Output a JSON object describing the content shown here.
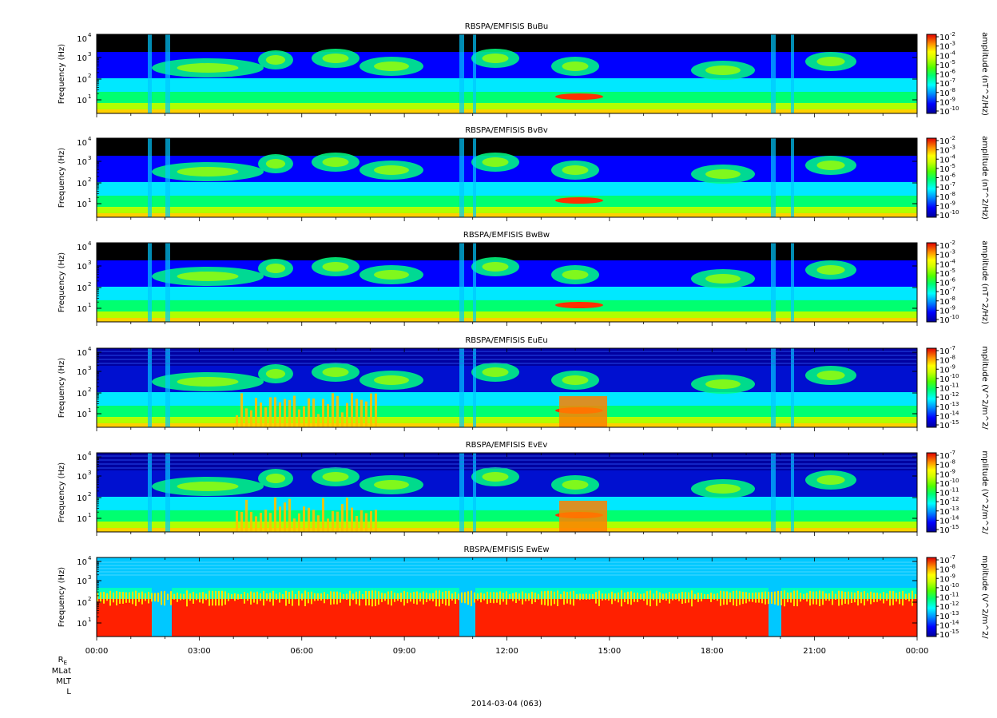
{
  "chart_data": [
    {
      "type": "heatmap",
      "title": "RBSPA/EMFISIS  BuBu",
      "ylabel": "Frequency (Hz)",
      "y_ticks": [
        "10",
        "10",
        "10",
        "10"
      ],
      "y_tick_exps": [
        "1",
        "2",
        "3",
        "4"
      ],
      "y_log": true,
      "colorbar": {
        "label": "amplitude (nT^2/Hz)",
        "ticks": [
          "10",
          "10",
          "10",
          "10",
          "10",
          "10",
          "10",
          "10",
          "10"
        ],
        "exps": [
          "-2",
          "-3",
          "-4",
          "-5",
          "-6",
          "-7",
          "-8",
          "-9",
          "-10"
        ]
      },
      "variant": "B"
    },
    {
      "type": "heatmap",
      "title": "RBSPA/EMFISIS  BvBv",
      "ylabel": "Frequency (Hz)",
      "y_ticks": [
        "10",
        "10",
        "10",
        "10"
      ],
      "y_tick_exps": [
        "1",
        "2",
        "3",
        "4"
      ],
      "y_log": true,
      "colorbar": {
        "label": "amplitude (nT^2/Hz)",
        "ticks": [
          "10",
          "10",
          "10",
          "10",
          "10",
          "10",
          "10",
          "10",
          "10"
        ],
        "exps": [
          "-2",
          "-3",
          "-4",
          "-5",
          "-6",
          "-7",
          "-8",
          "-9",
          "-10"
        ]
      },
      "variant": "B"
    },
    {
      "type": "heatmap",
      "title": "RBSPA/EMFISIS  BwBw",
      "ylabel": "Frequency (Hz)",
      "y_ticks": [
        "10",
        "10",
        "10",
        "10"
      ],
      "y_tick_exps": [
        "1",
        "2",
        "3",
        "4"
      ],
      "y_log": true,
      "colorbar": {
        "label": "amplitude (nT^2/Hz)",
        "ticks": [
          "10",
          "10",
          "10",
          "10",
          "10",
          "10",
          "10",
          "10",
          "10"
        ],
        "exps": [
          "-2",
          "-3",
          "-4",
          "-5",
          "-6",
          "-7",
          "-8",
          "-9",
          "-10"
        ]
      },
      "variant": "B"
    },
    {
      "type": "heatmap",
      "title": "RBSPA/EMFISIS  EuEu",
      "ylabel": "Frequency (Hz)",
      "y_ticks": [
        "10",
        "10",
        "10",
        "10"
      ],
      "y_tick_exps": [
        "1",
        "2",
        "3",
        "4"
      ],
      "y_log": true,
      "colorbar": {
        "label": "mplitude (V^2/m^2/",
        "ticks": [
          "10",
          "10",
          "10",
          "10",
          "10",
          "10",
          "10",
          "10",
          "10"
        ],
        "exps": [
          "-7",
          "-8",
          "-9",
          "-10",
          "-11",
          "-12",
          "-13",
          "-14",
          "-15"
        ]
      },
      "variant": "E"
    },
    {
      "type": "heatmap",
      "title": "RBSPA/EMFISIS  EvEv",
      "ylabel": "Frequency (Hz)",
      "y_ticks": [
        "10",
        "10",
        "10",
        "10"
      ],
      "y_tick_exps": [
        "1",
        "2",
        "3",
        "4"
      ],
      "y_log": true,
      "colorbar": {
        "label": "mplitude (V^2/m^2/",
        "ticks": [
          "10",
          "10",
          "10",
          "10",
          "10",
          "10",
          "10",
          "10",
          "10"
        ],
        "exps": [
          "-7",
          "-8",
          "-9",
          "-10",
          "-11",
          "-12",
          "-13",
          "-14",
          "-15"
        ]
      },
      "variant": "E"
    },
    {
      "type": "heatmap",
      "title": "RBSPA/EMFISIS  EwEw",
      "ylabel": "Frequency (Hz)",
      "y_ticks": [
        "10",
        "10",
        "10",
        "10"
      ],
      "y_tick_exps": [
        "1",
        "2",
        "3",
        "4"
      ],
      "y_log": true,
      "colorbar": {
        "label": "mplitude (V^2/m^2/",
        "ticks": [
          "10",
          "10",
          "10",
          "10",
          "10",
          "10",
          "10",
          "10",
          "10"
        ],
        "exps": [
          "-7",
          "-8",
          "-9",
          "-10",
          "-11",
          "-12",
          "-13",
          "-14",
          "-15"
        ]
      },
      "variant": "Ew"
    }
  ],
  "x_ticks": [
    "00:00",
    "03:00",
    "06:00",
    "09:00",
    "12:00",
    "15:00",
    "18:00",
    "21:00",
    "00:00"
  ],
  "ephemeris_labels": {
    "re_main": "R",
    "re_sub": "E",
    "mlat": "MLat",
    "mlt": "MLT",
    "l": "L"
  },
  "date_label": "2014-03-04 (063)",
  "colors": {
    "background": "#ffffff",
    "sky": "#000000",
    "colormap": [
      "#0000a0",
      "#0000ff",
      "#00aaff",
      "#00ffff",
      "#00ff80",
      "#40ff00",
      "#c0ff00",
      "#ffff00",
      "#ffa000",
      "#ff3000",
      "#e00000"
    ]
  }
}
